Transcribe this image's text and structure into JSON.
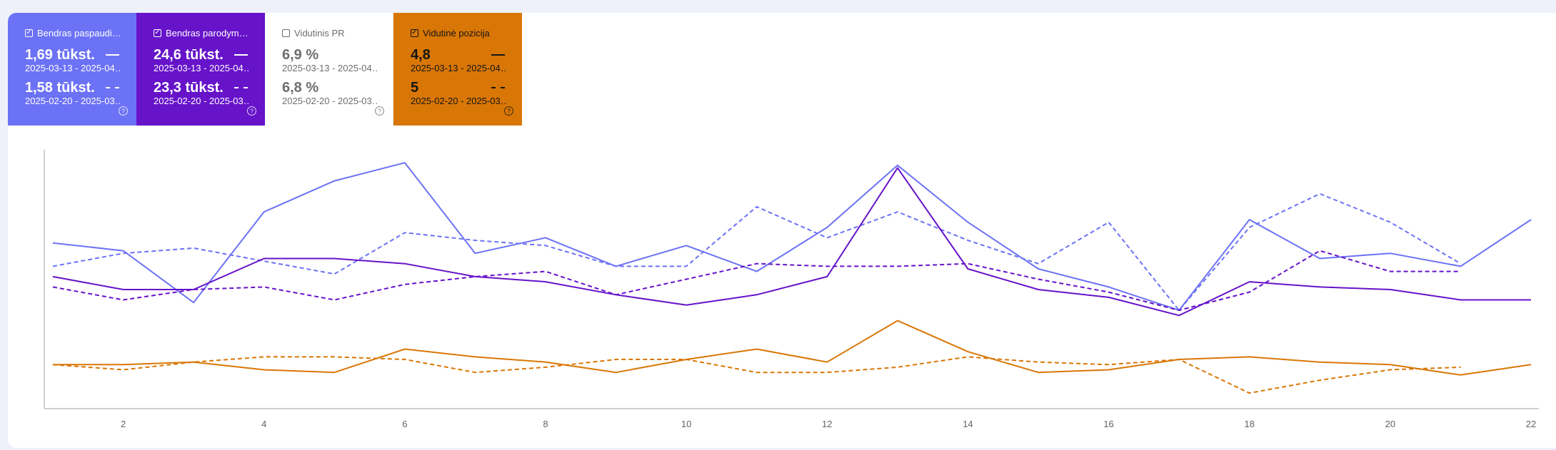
{
  "cards": [
    {
      "id": "clicks",
      "checked": true,
      "title": "Bendras paspaudi…",
      "current": "1,69 tūkst.",
      "current_range": "2025-03-13 - 2025-04…",
      "previous": "1,58 tūkst.",
      "previous_range": "2025-02-20 - 2025-03…",
      "help": "?",
      "color": "#6c72f5"
    },
    {
      "id": "impressions",
      "checked": true,
      "title": "Bendras parodym…",
      "current": "24,6 tūkst.",
      "current_range": "2025-03-13 - 2025-04…",
      "previous": "23,3 tūkst.",
      "previous_range": "2025-02-20 - 2025-03…",
      "help": "?",
      "color": "#6613c9"
    },
    {
      "id": "ctr",
      "checked": false,
      "title": "Vidutinis PR",
      "current": "6,9 %",
      "current_range": "2025-03-13 - 2025-04…",
      "previous": "6,8 %",
      "previous_range": "2025-02-20 - 2025-03…",
      "help": "?",
      "color": "#ffffff"
    },
    {
      "id": "position",
      "checked": true,
      "title": "Vidutinė pozicija",
      "current": "4,8",
      "current_range": "2025-03-13 - 2025-04…",
      "previous": "5",
      "previous_range": "2025-02-20 - 2025-03…",
      "help": "?",
      "color": "#d97706"
    }
  ],
  "chart_data": {
    "type": "line",
    "x_ticks": [
      "2",
      "4",
      "6",
      "8",
      "10",
      "12",
      "14",
      "16",
      "18",
      "20",
      "22"
    ],
    "x_range": [
      1,
      22
    ],
    "grid": false,
    "series": [
      {
        "metric": "clicks",
        "period": "current",
        "style": "solid",
        "color": "#6c72f5",
        "x": [
          1,
          2,
          3,
          4,
          5,
          6,
          7,
          8,
          9,
          10,
          11,
          12,
          13,
          14,
          15,
          16,
          17,
          18,
          19,
          20,
          21,
          22
        ],
        "values": [
          0.64,
          0.61,
          0.41,
          0.76,
          0.88,
          0.95,
          0.6,
          0.66,
          0.55,
          0.63,
          0.53,
          0.7,
          0.94,
          0.72,
          0.54,
          0.47,
          0.38,
          0.73,
          0.58,
          0.6,
          0.55,
          0.73
        ]
      },
      {
        "metric": "clicks",
        "period": "previous",
        "style": "dashed",
        "color": "#6c72f5",
        "x": [
          1,
          2,
          3,
          4,
          5,
          6,
          7,
          8,
          9,
          10,
          11,
          12,
          13,
          14,
          15,
          16,
          17,
          18,
          19,
          20,
          21
        ],
        "values": [
          0.55,
          0.6,
          0.62,
          0.57,
          0.52,
          0.68,
          0.65,
          0.63,
          0.55,
          0.55,
          0.78,
          0.66,
          0.76,
          0.65,
          0.56,
          0.72,
          0.38,
          0.7,
          0.83,
          0.72,
          0.56
        ]
      },
      {
        "metric": "impressions",
        "period": "current",
        "style": "solid",
        "color": "#6613c9",
        "x": [
          1,
          2,
          3,
          4,
          5,
          6,
          7,
          8,
          9,
          10,
          11,
          12,
          13,
          14,
          15,
          16,
          17,
          18,
          19,
          20,
          21,
          22
        ],
        "values": [
          0.51,
          0.46,
          0.46,
          0.58,
          0.58,
          0.56,
          0.51,
          0.49,
          0.44,
          0.4,
          0.44,
          0.51,
          0.93,
          0.54,
          0.46,
          0.43,
          0.36,
          0.49,
          0.47,
          0.46,
          0.42,
          0.42
        ]
      },
      {
        "metric": "impressions",
        "period": "previous",
        "style": "dashed",
        "color": "#6613c9",
        "x": [
          1,
          2,
          3,
          4,
          5,
          6,
          7,
          8,
          9,
          10,
          11,
          12,
          13,
          14,
          15,
          16,
          17,
          18,
          19,
          20,
          21
        ],
        "values": [
          0.47,
          0.42,
          0.46,
          0.47,
          0.42,
          0.48,
          0.51,
          0.53,
          0.44,
          0.5,
          0.56,
          0.55,
          0.55,
          0.56,
          0.5,
          0.45,
          0.38,
          0.45,
          0.61,
          0.53,
          0.53
        ]
      },
      {
        "metric": "position",
        "period": "current",
        "style": "solid",
        "color": "#d97706",
        "x": [
          1,
          2,
          3,
          4,
          5,
          6,
          7,
          8,
          9,
          10,
          11,
          12,
          13,
          14,
          15,
          16,
          17,
          18,
          19,
          20,
          21,
          22
        ],
        "values": [
          0.17,
          0.17,
          0.18,
          0.15,
          0.14,
          0.23,
          0.2,
          0.18,
          0.14,
          0.19,
          0.23,
          0.18,
          0.34,
          0.22,
          0.14,
          0.15,
          0.19,
          0.2,
          0.18,
          0.17,
          0.13,
          0.17
        ]
      },
      {
        "metric": "position",
        "period": "previous",
        "style": "dashed",
        "color": "#d97706",
        "x": [
          1,
          2,
          3,
          4,
          5,
          6,
          7,
          8,
          9,
          10,
          11,
          12,
          13,
          14,
          15,
          16,
          17,
          18,
          19,
          20,
          21
        ],
        "values": [
          0.17,
          0.15,
          0.18,
          0.2,
          0.2,
          0.19,
          0.14,
          0.16,
          0.19,
          0.19,
          0.14,
          0.14,
          0.16,
          0.2,
          0.18,
          0.17,
          0.19,
          0.06,
          0.11,
          0.15,
          0.16
        ]
      }
    ]
  }
}
